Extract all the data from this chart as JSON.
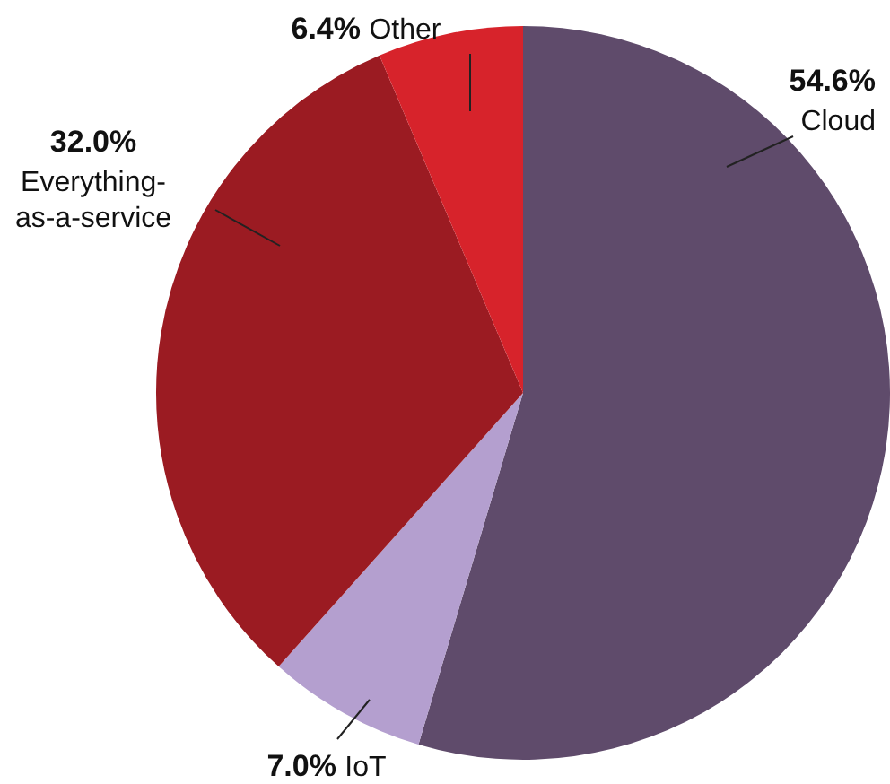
{
  "chart_data": {
    "type": "pie",
    "categories": [
      "Cloud",
      "IoT",
      "Everything-as-a-service",
      "Other"
    ],
    "values": [
      54.6,
      7.0,
      32.0,
      6.4
    ],
    "colors": [
      "#5f4b6b",
      "#b49fcf",
      "#9b1b22",
      "#d7232b"
    ],
    "value_labels": [
      "54.6%",
      "7.0%",
      "32.0%",
      "6.4%"
    ],
    "legend": false
  }
}
